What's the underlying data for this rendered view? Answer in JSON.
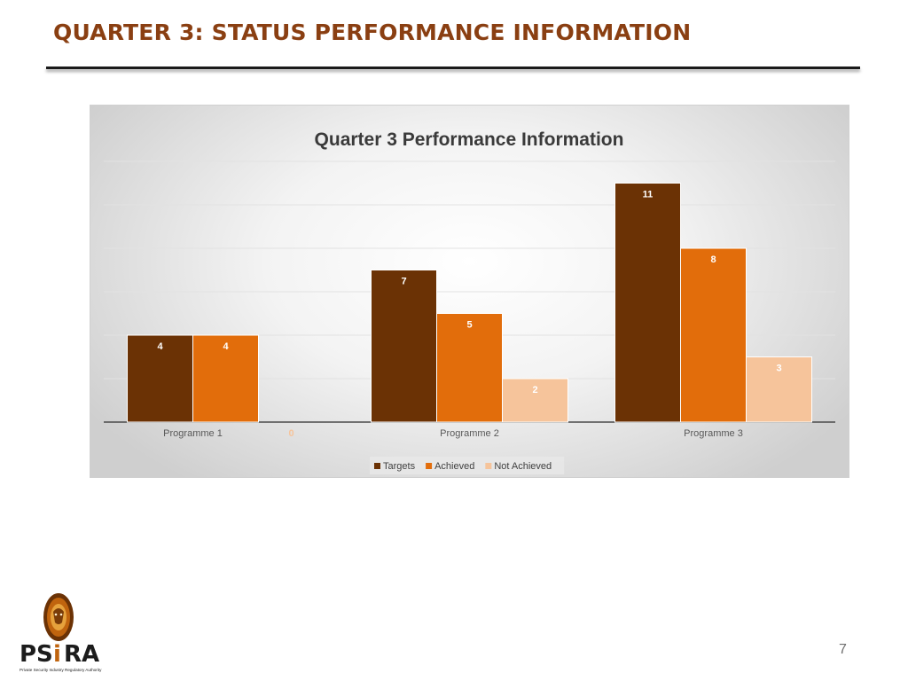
{
  "slide": {
    "title": "QUARTER 3: STATUS PERFORMANCE INFORMATION",
    "page_number": "7"
  },
  "logo": {
    "name": "PSiRA",
    "tagline": "Private Security Industry Regulatory Authority"
  },
  "colors": {
    "title": "#8a3f12",
    "targets": "#6b3205",
    "achieved": "#e26d0b",
    "not_achieved": "#f6c49b"
  },
  "chart_data": {
    "type": "bar",
    "title": "Quarter 3 Performance Information",
    "categories": [
      "Programme 1",
      "Programme 2",
      "Programme 3"
    ],
    "series": [
      {
        "name": "Targets",
        "values": [
          4,
          7,
          11
        ],
        "color": "#6b3205"
      },
      {
        "name": "Achieved",
        "values": [
          4,
          5,
          8
        ],
        "color": "#e26d0b"
      },
      {
        "name": "Not Achieved",
        "values": [
          0,
          2,
          3
        ],
        "color": "#f6c49b"
      }
    ],
    "ylim": [
      0,
      12
    ],
    "grid": true,
    "legend": "bottom",
    "data_labels": true
  }
}
